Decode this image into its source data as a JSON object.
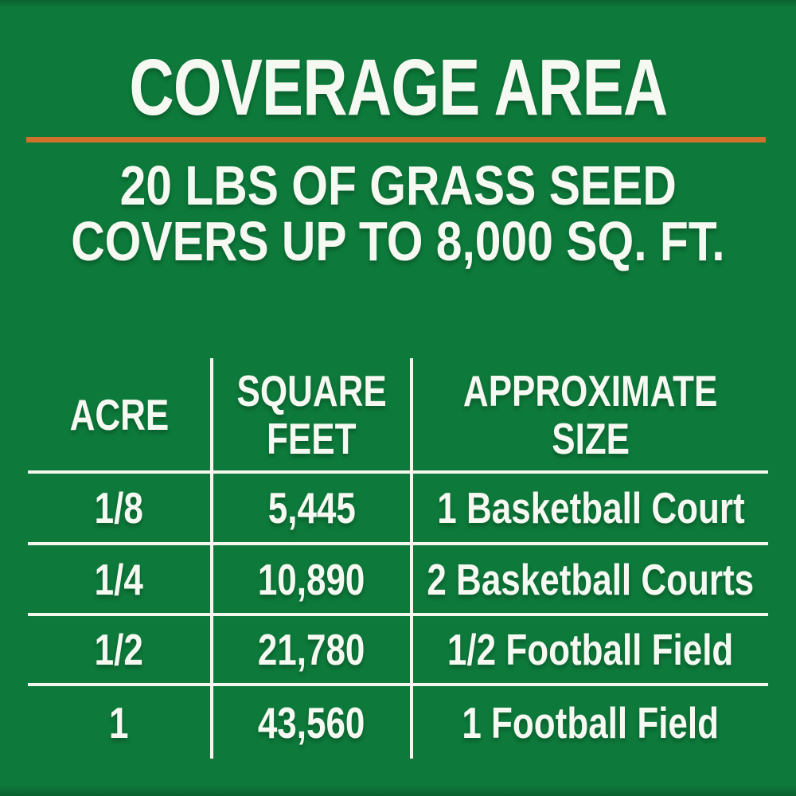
{
  "theme": {
    "background_green": "#0d7a3b",
    "accent_orange": "#d0722c",
    "text_white": "#f6f9f2",
    "line_white": "#f3f7ee"
  },
  "header": {
    "title": "COVERAGE AREA",
    "subtitle_line1": "20 LBS OF GRASS SEED",
    "subtitle_line2": "COVERS UP TO 8,000 SQ. FT."
  },
  "table": {
    "headers": [
      {
        "lines": [
          "ACRE"
        ]
      },
      {
        "lines": [
          "SQUARE",
          "FEET"
        ]
      },
      {
        "lines": [
          "APPROXIMATE",
          "SIZE"
        ]
      }
    ]
  },
  "chart_data": {
    "type": "table",
    "title": "COVERAGE AREA",
    "subtitle": "20 LBS OF GRASS SEED COVERS UP TO 8,000 SQ. FT.",
    "columns": [
      "ACRE",
      "SQUARE FEET",
      "APPROXIMATE SIZE"
    ],
    "rows": [
      [
        "1/8",
        "5,445",
        "1 Basketball Court"
      ],
      [
        "1/4",
        "10,890",
        "2 Basketball Courts"
      ],
      [
        "1/2",
        "21,780",
        "1/2 Football Field"
      ],
      [
        "1",
        "43,560",
        "1 Football Field"
      ]
    ]
  }
}
